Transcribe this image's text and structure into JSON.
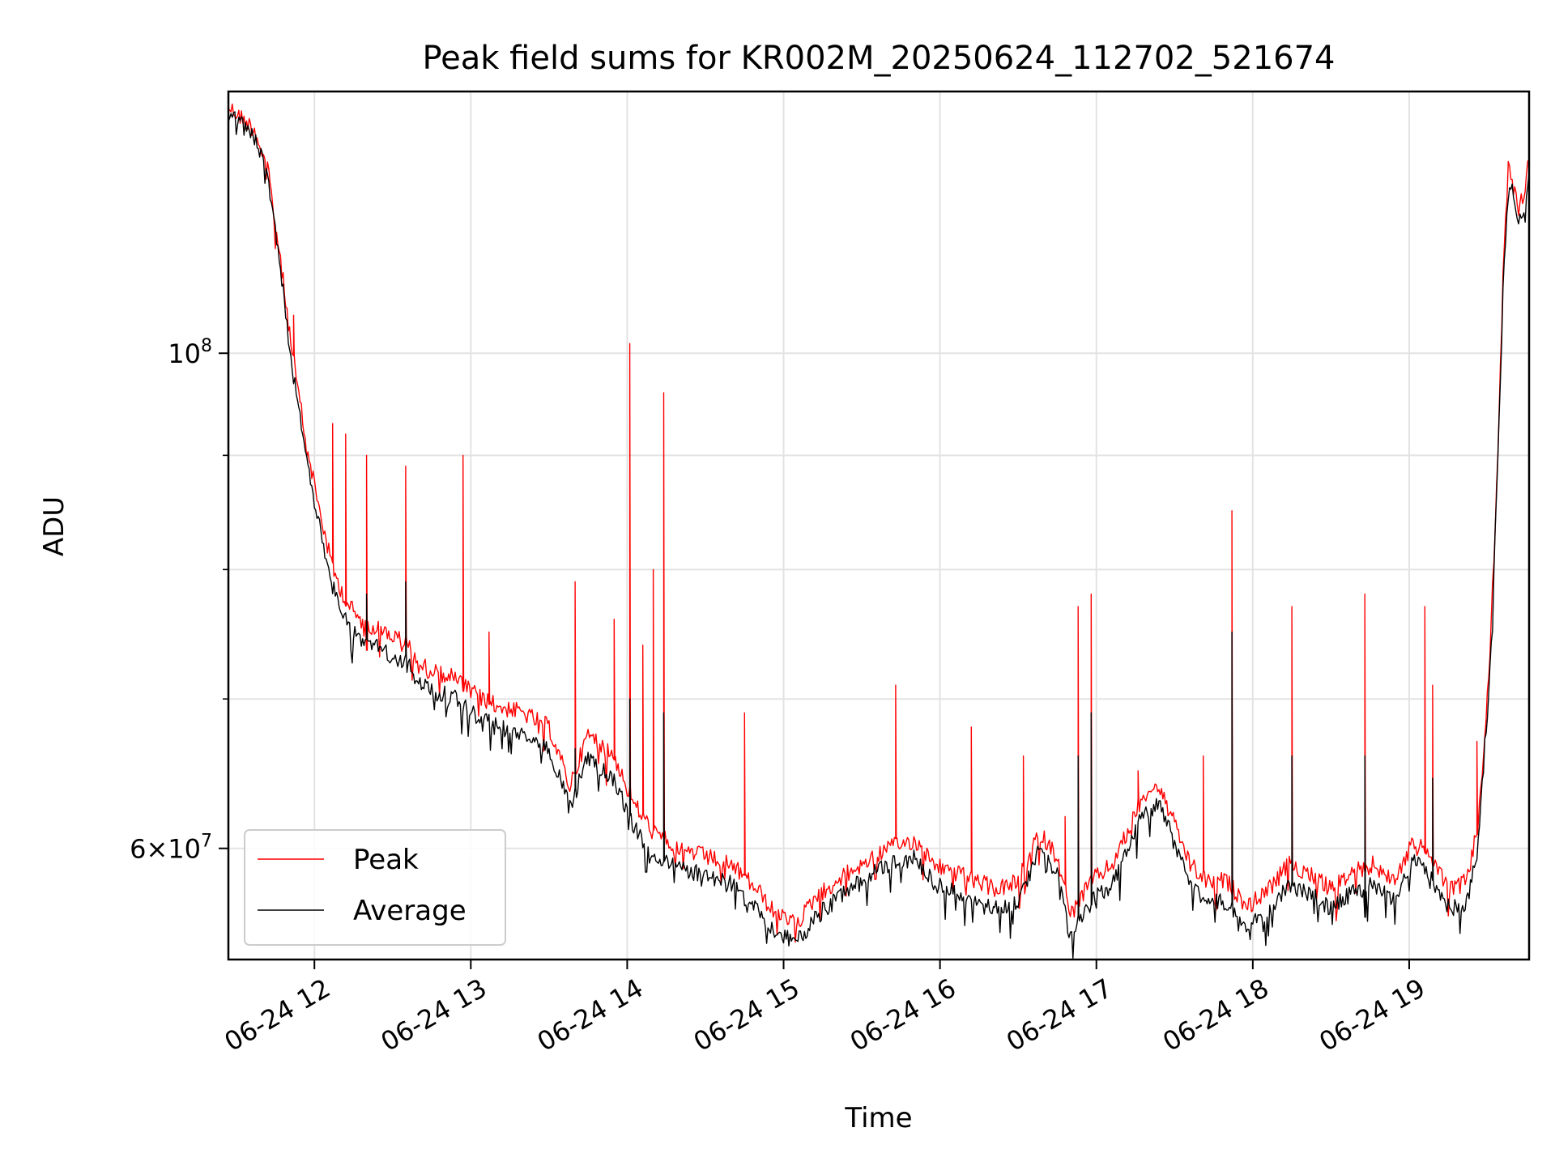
{
  "chart_data": {
    "type": "line",
    "title": "Peak field sums for KR002M_20250624_112702_521674",
    "xlabel": "Time",
    "ylabel": "ADU",
    "y_scale": "log",
    "grid": true,
    "legend_position": "lower-left",
    "xlim": [
      "2025-06-24 11:27",
      "2025-06-24 19:46"
    ],
    "ylim": [
      53500000,
      131000000
    ],
    "x_ticks": [
      {
        "value": "2025-06-24 12:00",
        "label": "06-24 12"
      },
      {
        "value": "2025-06-24 13:00",
        "label": "06-24 13"
      },
      {
        "value": "2025-06-24 14:00",
        "label": "06-24 14"
      },
      {
        "value": "2025-06-24 15:00",
        "label": "06-24 15"
      },
      {
        "value": "2025-06-24 16:00",
        "label": "06-24 16"
      },
      {
        "value": "2025-06-24 17:00",
        "label": "06-24 17"
      },
      {
        "value": "2025-06-24 18:00",
        "label": "06-24 18"
      },
      {
        "value": "2025-06-24 19:00",
        "label": "06-24 19"
      }
    ],
    "y_ticks": [
      {
        "value": 100000000,
        "base": "10",
        "exp": "8"
      },
      {
        "value": 60000000,
        "mant": "6",
        "base": "10",
        "exp": "7"
      }
    ],
    "y_minor_ticks": [
      70000000,
      80000000,
      90000000
    ],
    "series": [
      {
        "name": "Peak",
        "color": "#ff0000",
        "points": [
          [
            "2025-06-24 11:27",
            129000000
          ],
          [
            "2025-06-24 11:32",
            127500000
          ],
          [
            "2025-06-24 11:37",
            126000000
          ],
          [
            "2025-06-24 11:42",
            121000000
          ],
          [
            "2025-06-24 11:47",
            110000000
          ],
          [
            "2025-06-24 11:52",
            99000000
          ],
          [
            "2025-06-24 11:57",
            91000000
          ],
          [
            "2025-06-24 12:02",
            85000000
          ],
          [
            "2025-06-24 12:07",
            80000000
          ],
          [
            "2025-06-24 12:12",
            77500000
          ],
          [
            "2025-06-24 12:17",
            76000000
          ],
          [
            "2025-06-24 12:22",
            75500000
          ],
          [
            "2025-06-24 12:27",
            75000000
          ],
          [
            "2025-06-24 12:32",
            74500000
          ],
          [
            "2025-06-24 12:36",
            74000000
          ],
          [
            "2025-06-24 12:40",
            72500000
          ],
          [
            "2025-06-24 12:47",
            72000000
          ],
          [
            "2025-06-24 12:54",
            71500000
          ],
          [
            "2025-06-24 13:00",
            70500000
          ],
          [
            "2025-06-24 13:10",
            69500000
          ],
          [
            "2025-06-24 13:20",
            69000000
          ],
          [
            "2025-06-24 13:30",
            68000000
          ],
          [
            "2025-06-24 13:38",
            64000000
          ],
          [
            "2025-06-24 13:45",
            67500000
          ],
          [
            "2025-06-24 13:55",
            66000000
          ],
          [
            "2025-06-24 14:02",
            63000000
          ],
          [
            "2025-06-24 14:10",
            61000000
          ],
          [
            "2025-06-24 14:20",
            60000000
          ],
          [
            "2025-06-24 14:30",
            59500000
          ],
          [
            "2025-06-24 14:40",
            59000000
          ],
          [
            "2025-06-24 14:50",
            57500000
          ],
          [
            "2025-06-24 14:57",
            56000000
          ],
          [
            "2025-06-24 15:05",
            55500000
          ],
          [
            "2025-06-24 15:12",
            57000000
          ],
          [
            "2025-06-24 15:20",
            58000000
          ],
          [
            "2025-06-24 15:30",
            59000000
          ],
          [
            "2025-06-24 15:40",
            60000000
          ],
          [
            "2025-06-24 15:50",
            60500000
          ],
          [
            "2025-06-24 15:58",
            59000000
          ],
          [
            "2025-06-24 16:06",
            58500000
          ],
          [
            "2025-06-24 16:14",
            58000000
          ],
          [
            "2025-06-24 16:22",
            57500000
          ],
          [
            "2025-06-24 16:30",
            58000000
          ],
          [
            "2025-06-24 16:38",
            61000000
          ],
          [
            "2025-06-24 16:45",
            59500000
          ],
          [
            "2025-06-24 16:50",
            56000000
          ],
          [
            "2025-06-24 16:58",
            58000000
          ],
          [
            "2025-06-24 17:06",
            59000000
          ],
          [
            "2025-06-24 17:12",
            61000000
          ],
          [
            "2025-06-24 17:18",
            63500000
          ],
          [
            "2025-06-24 17:24",
            64000000
          ],
          [
            "2025-06-24 17:30",
            61500000
          ],
          [
            "2025-06-24 17:36",
            59000000
          ],
          [
            "2025-06-24 17:42",
            58000000
          ],
          [
            "2025-06-24 17:50",
            58000000
          ],
          [
            "2025-06-24 17:58",
            56500000
          ],
          [
            "2025-06-24 18:06",
            57500000
          ],
          [
            "2025-06-24 18:14",
            59000000
          ],
          [
            "2025-06-24 18:22",
            58500000
          ],
          [
            "2025-06-24 18:30",
            57500000
          ],
          [
            "2025-06-24 18:38",
            58500000
          ],
          [
            "2025-06-24 18:46",
            59000000
          ],
          [
            "2025-06-24 18:54",
            58000000
          ],
          [
            "2025-06-24 19:02",
            60500000
          ],
          [
            "2025-06-24 19:10",
            59000000
          ],
          [
            "2025-06-24 19:16",
            57500000
          ],
          [
            "2025-06-24 19:22",
            58000000
          ],
          [
            "2025-06-24 19:26",
            61000000
          ],
          [
            "2025-06-24 19:28",
            65000000
          ],
          [
            "2025-06-24 19:31",
            73000000
          ],
          [
            "2025-06-24 19:34",
            90000000
          ],
          [
            "2025-06-24 19:36",
            108000000
          ],
          [
            "2025-06-24 19:38",
            121000000
          ],
          [
            "2025-06-24 19:40",
            120000000
          ],
          [
            "2025-06-24 19:42",
            116000000
          ],
          [
            "2025-06-24 19:44",
            118000000
          ],
          [
            "2025-06-24 19:46",
            122000000
          ]
        ],
        "spikes": [
          [
            "2025-06-24 11:52",
            104000000
          ],
          [
            "2025-06-24 12:07",
            93000000
          ],
          [
            "2025-06-24 12:12",
            92000000
          ],
          [
            "2025-06-24 12:20",
            90000000
          ],
          [
            "2025-06-24 12:35",
            89000000
          ],
          [
            "2025-06-24 12:57",
            90000000
          ],
          [
            "2025-06-24 13:07",
            75000000
          ],
          [
            "2025-06-24 13:40",
            79000000
          ],
          [
            "2025-06-24 13:55",
            76000000
          ],
          [
            "2025-06-24 14:01",
            101000000
          ],
          [
            "2025-06-24 14:06",
            74000000
          ],
          [
            "2025-06-24 14:10",
            80000000
          ],
          [
            "2025-06-24 14:14",
            96000000
          ],
          [
            "2025-06-24 14:45",
            69000000
          ],
          [
            "2025-06-24 15:43",
            71000000
          ],
          [
            "2025-06-24 16:12",
            68000000
          ],
          [
            "2025-06-24 16:32",
            66000000
          ],
          [
            "2025-06-24 16:48",
            62000000
          ],
          [
            "2025-06-24 16:53",
            77000000
          ],
          [
            "2025-06-24 16:58",
            78000000
          ],
          [
            "2025-06-24 17:16",
            65000000
          ],
          [
            "2025-06-24 17:41",
            66000000
          ],
          [
            "2025-06-24 17:52",
            85000000
          ],
          [
            "2025-06-24 18:15",
            77000000
          ],
          [
            "2025-06-24 18:43",
            78000000
          ],
          [
            "2025-06-24 19:06",
            77000000
          ],
          [
            "2025-06-24 19:09",
            71000000
          ],
          [
            "2025-06-24 19:26",
            67000000
          ]
        ]
      },
      {
        "name": "Average",
        "color": "#000000",
        "points": [
          [
            "2025-06-24 11:27",
            128000000
          ],
          [
            "2025-06-24 11:32",
            126500000
          ],
          [
            "2025-06-24 11:37",
            125000000
          ],
          [
            "2025-06-24 11:42",
            120000000
          ],
          [
            "2025-06-24 11:47",
            109000000
          ],
          [
            "2025-06-24 11:52",
            97500000
          ],
          [
            "2025-06-24 11:57",
            89500000
          ],
          [
            "2025-06-24 12:02",
            83500000
          ],
          [
            "2025-06-24 12:07",
            78500000
          ],
          [
            "2025-06-24 12:12",
            76000000
          ],
          [
            "2025-06-24 12:17",
            74500000
          ],
          [
            "2025-06-24 12:22",
            74000000
          ],
          [
            "2025-06-24 12:27",
            73500000
          ],
          [
            "2025-06-24 12:32",
            73000000
          ],
          [
            "2025-06-24 12:36",
            72500000
          ],
          [
            "2025-06-24 12:40",
            71000000
          ],
          [
            "2025-06-24 12:47",
            70500000
          ],
          [
            "2025-06-24 12:54",
            70000000
          ],
          [
            "2025-06-24 13:00",
            69000000
          ],
          [
            "2025-06-24 13:10",
            68000000
          ],
          [
            "2025-06-24 13:20",
            67500000
          ],
          [
            "2025-06-24 13:30",
            66500000
          ],
          [
            "2025-06-24 13:38",
            62500000
          ],
          [
            "2025-06-24 13:45",
            66000000
          ],
          [
            "2025-06-24 13:55",
            64500000
          ],
          [
            "2025-06-24 14:02",
            61500000
          ],
          [
            "2025-06-24 14:10",
            59500000
          ],
          [
            "2025-06-24 14:20",
            58800000
          ],
          [
            "2025-06-24 14:30",
            58300000
          ],
          [
            "2025-06-24 14:40",
            57800000
          ],
          [
            "2025-06-24 14:50",
            56300000
          ],
          [
            "2025-06-24 14:57",
            54800000
          ],
          [
            "2025-06-24 15:05",
            54500000
          ],
          [
            "2025-06-24 15:12",
            55800000
          ],
          [
            "2025-06-24 15:20",
            57000000
          ],
          [
            "2025-06-24 15:30",
            58000000
          ],
          [
            "2025-06-24 15:40",
            59000000
          ],
          [
            "2025-06-24 15:50",
            59400000
          ],
          [
            "2025-06-24 15:58",
            57800000
          ],
          [
            "2025-06-24 16:06",
            57300000
          ],
          [
            "2025-06-24 16:14",
            56800000
          ],
          [
            "2025-06-24 16:22",
            56300000
          ],
          [
            "2025-06-24 16:30",
            56800000
          ],
          [
            "2025-06-24 16:38",
            59800000
          ],
          [
            "2025-06-24 16:45",
            58300000
          ],
          [
            "2025-06-24 16:50",
            54800000
          ],
          [
            "2025-06-24 16:58",
            56800000
          ],
          [
            "2025-06-24 17:06",
            57800000
          ],
          [
            "2025-06-24 17:12",
            59800000
          ],
          [
            "2025-06-24 17:18",
            62300000
          ],
          [
            "2025-06-24 17:24",
            62800000
          ],
          [
            "2025-06-24 17:30",
            60300000
          ],
          [
            "2025-06-24 17:36",
            57800000
          ],
          [
            "2025-06-24 17:42",
            56800000
          ],
          [
            "2025-06-24 17:50",
            56800000
          ],
          [
            "2025-06-24 17:58",
            55300000
          ],
          [
            "2025-06-24 18:06",
            56300000
          ],
          [
            "2025-06-24 18:14",
            57800000
          ],
          [
            "2025-06-24 18:22",
            57300000
          ],
          [
            "2025-06-24 18:30",
            56300000
          ],
          [
            "2025-06-24 18:38",
            57300000
          ],
          [
            "2025-06-24 18:46",
            57800000
          ],
          [
            "2025-06-24 18:54",
            56800000
          ],
          [
            "2025-06-24 19:02",
            59300000
          ],
          [
            "2025-06-24 19:10",
            57800000
          ],
          [
            "2025-06-24 19:16",
            56300000
          ],
          [
            "2025-06-24 19:22",
            56800000
          ],
          [
            "2025-06-24 19:26",
            59800000
          ],
          [
            "2025-06-24 19:28",
            64000000
          ],
          [
            "2025-06-24 19:31",
            72000000
          ],
          [
            "2025-06-24 19:34",
            89000000
          ],
          [
            "2025-06-24 19:36",
            106500000
          ],
          [
            "2025-06-24 19:38",
            119500000
          ],
          [
            "2025-06-24 19:40",
            118500000
          ],
          [
            "2025-06-24 19:42",
            114500000
          ],
          [
            "2025-06-24 19:44",
            116500000
          ],
          [
            "2025-06-24 19:46",
            120500000
          ]
        ],
        "spikes": [
          [
            "2025-06-24 12:20",
            78000000
          ],
          [
            "2025-06-24 12:35",
            79000000
          ],
          [
            "2025-06-24 13:40",
            66500000
          ],
          [
            "2025-06-24 14:01",
            70000000
          ],
          [
            "2025-06-24 14:14",
            69000000
          ],
          [
            "2025-06-24 16:53",
            66000000
          ],
          [
            "2025-06-24 16:58",
            69000000
          ],
          [
            "2025-06-24 17:52",
            75000000
          ],
          [
            "2025-06-24 18:15",
            66000000
          ],
          [
            "2025-06-24 18:43",
            66000000
          ],
          [
            "2025-06-24 19:09",
            64500000
          ]
        ]
      }
    ]
  }
}
